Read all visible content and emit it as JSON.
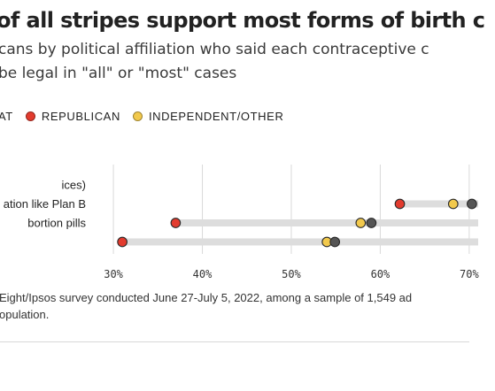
{
  "header": {
    "title": "of all stripes support most forms of birth c",
    "subtitle_line1": "cans by political affiliation who said each contraceptive c",
    "subtitle_line2": "be legal in \"all\" or \"most\" cases"
  },
  "legend": {
    "items": [
      {
        "label": "AT",
        "color": null
      },
      {
        "label": "REPUBLICAN",
        "color": "#e23b2e"
      },
      {
        "label": "INDEPENDENT/OTHER",
        "color": "#f2c94c"
      }
    ]
  },
  "chart_data": {
    "type": "dot",
    "categories": [
      "ices)",
      "ation like Plan B",
      "bortion pills",
      ""
    ],
    "series": [
      {
        "name": "REPUBLICAN",
        "color": "#e23b2e",
        "values": [
          null,
          62.2,
          37.0,
          31.0
        ]
      },
      {
        "name": "INDEPENDENT/OTHER",
        "color": "#f2c94c",
        "values": [
          null,
          68.2,
          57.8,
          54.0
        ]
      },
      {
        "color": "#555555",
        "values": [
          null,
          70.3,
          59.0,
          54.9
        ]
      }
    ],
    "range_bar_color": "#dddddd",
    "xlim": [
      28.5,
      73.0
    ],
    "xticks": [
      30,
      40,
      50,
      60,
      70
    ],
    "xtick_labels": [
      "30%",
      "40%",
      "50%",
      "60%",
      "70%"
    ],
    "grid": true
  },
  "footnote": {
    "line1": "Eight/Ipsos survey conducted June 27-July 5, 2022, among a sample of 1,549 ad",
    "line2": "opulation."
  }
}
